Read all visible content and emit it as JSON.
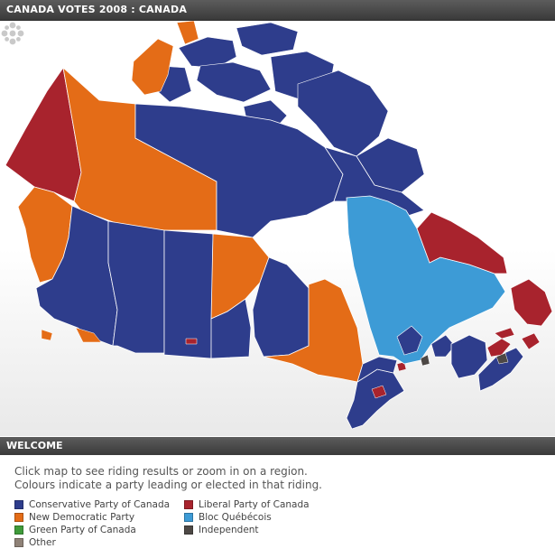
{
  "header": {
    "title": "CANADA VOTES 2008 : CANADA"
  },
  "map": {
    "icon": "canada-electoral-map",
    "party_colors": {
      "conservative": "#2e3d8c",
      "ndp": "#e46c17",
      "liberal": "#a8232d",
      "bloc": "#3d9bd6",
      "green": "#3f9b3a",
      "independent": "#4d4845",
      "other": "#8f8277"
    },
    "regions": [
      {
        "id": "yukon",
        "party": "liberal"
      },
      {
        "id": "western-arctic",
        "party": "ndp"
      },
      {
        "id": "nunavut",
        "party": "conservative"
      },
      {
        "id": "british-columbia",
        "party": "conservative"
      },
      {
        "id": "alberta",
        "party": "conservative"
      },
      {
        "id": "saskatchewan",
        "party": "conservative"
      },
      {
        "id": "manitoba",
        "party": "ndp"
      },
      {
        "id": "northern-ontario",
        "party": "ndp"
      },
      {
        "id": "southern-ontario",
        "party": "conservative"
      },
      {
        "id": "quebec",
        "party": "bloc"
      },
      {
        "id": "labrador",
        "party": "liberal"
      },
      {
        "id": "newfoundland",
        "party": "liberal"
      },
      {
        "id": "maritimes",
        "party": "conservative"
      }
    ]
  },
  "logo": {
    "icon": "cbc-gem-logo"
  },
  "welcome": {
    "title": "WELCOME",
    "line1": "Click map to see riding results or zoom in on a region.",
    "line2": "Colours indicate a party leading or elected in that riding."
  },
  "legend": [
    {
      "key": "conservative",
      "label": "Conservative Party of Canada",
      "color": "#2e3d8c"
    },
    {
      "key": "liberal",
      "label": "Liberal Party of Canada",
      "color": "#a8232d"
    },
    {
      "key": "ndp",
      "label": "New Democratic Party",
      "color": "#e46c17"
    },
    {
      "key": "bloc",
      "label": "Bloc Québécois",
      "color": "#3d9bd6"
    },
    {
      "key": "green",
      "label": "Green Party of Canada",
      "color": "#3f9b3a"
    },
    {
      "key": "independent",
      "label": "Independent",
      "color": "#4d4845"
    },
    {
      "key": "other",
      "label": "Other",
      "color": "#8f8277"
    }
  ]
}
